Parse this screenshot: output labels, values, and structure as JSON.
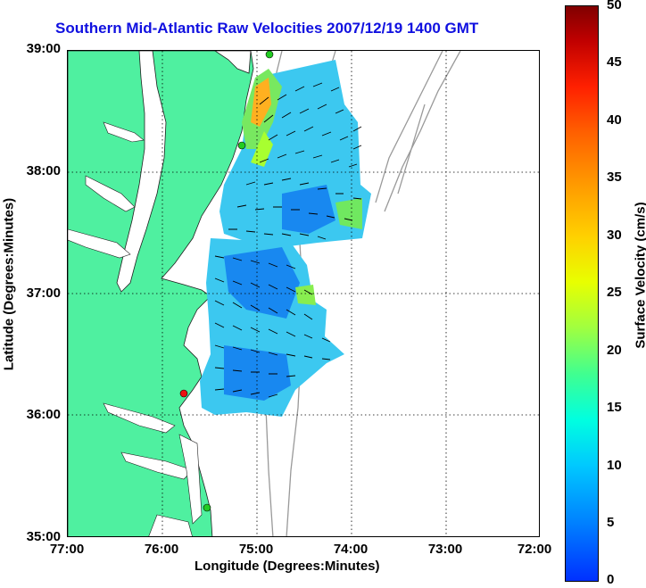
{
  "title": "Southern Mid-Atlantic Raw Velocities 2007/12/19 1400 GMT",
  "xaxis": {
    "label": "Longitude (Degrees:Minutes)",
    "ticks": [
      "77:00",
      "76:00",
      "75:00",
      "74:00",
      "73:00",
      "72:00"
    ]
  },
  "yaxis": {
    "label": "Latitude (Degrees:Minutes)",
    "ticks": [
      "39:00",
      "38:00",
      "37:00",
      "36:00",
      "35:00"
    ]
  },
  "colorbar": {
    "label": "Surface Velocity (cm/s)",
    "ticks": [
      "50",
      "45",
      "40",
      "35",
      "30",
      "25",
      "20",
      "15",
      "10",
      "5",
      "0"
    ],
    "range": [
      0,
      50
    ]
  },
  "colors": {
    "land": "#4ff0a0",
    "title": "#1010e0",
    "station_green": "#22cc22",
    "station_red": "#ee1111",
    "bathymetry": "#999999"
  }
}
